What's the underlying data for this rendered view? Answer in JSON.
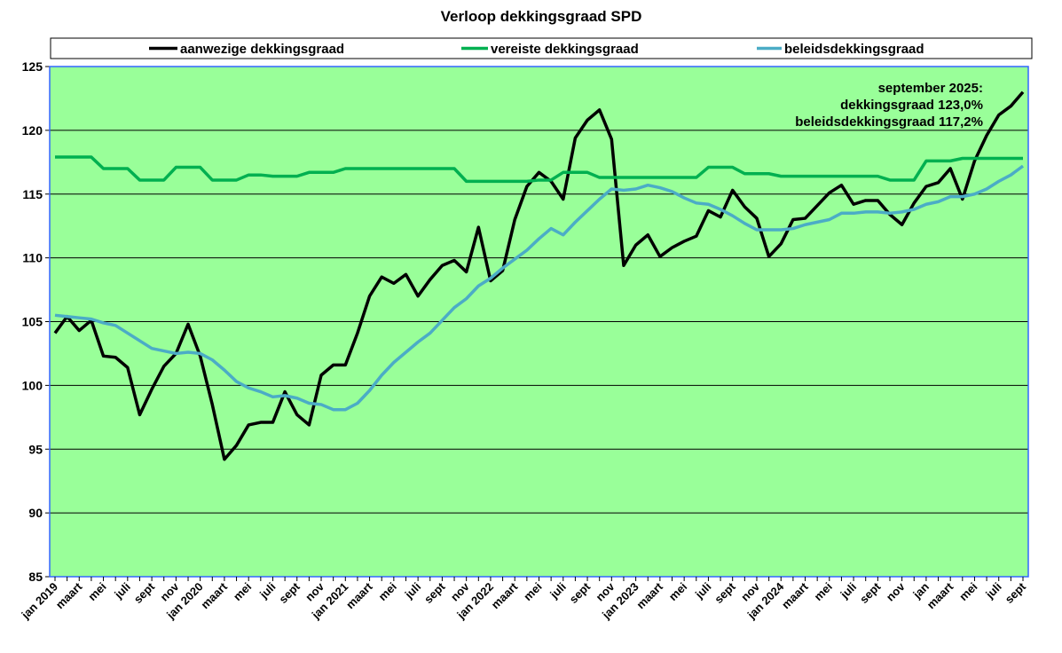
{
  "chart_data": {
    "type": "line",
    "title": "Verloop dekkingsgraad SPD",
    "categories": [
      "jan 2019",
      null,
      "maart",
      null,
      "mei",
      null,
      "juli",
      null,
      "sept",
      null,
      "nov",
      null,
      "jan 2020",
      null,
      "maart",
      null,
      "mei",
      null,
      "juli",
      null,
      "sept",
      null,
      "nov",
      null,
      "jan 2021",
      null,
      "maart",
      null,
      "mei",
      null,
      "juli",
      null,
      "sept",
      null,
      "nov",
      null,
      "jan 2022",
      null,
      "maart",
      null,
      "mei",
      null,
      "juli",
      null,
      "sept",
      null,
      "nov",
      null,
      "jan 2023",
      null,
      "maart",
      null,
      "mei",
      null,
      "juli",
      null,
      "sept",
      null,
      "nov",
      null,
      "jan 2024",
      null,
      "maart",
      null,
      "mei",
      null,
      "juli",
      null,
      "sept",
      null,
      "nov",
      null,
      "jan",
      null,
      "maart",
      null,
      "mei",
      null,
      "juli",
      null,
      "sept"
    ],
    "series": [
      {
        "name": "aanwezige dekkingsgraad",
        "color": "#000000",
        "values": [
          104.1,
          105.4,
          104.3,
          105.1,
          102.3,
          102.2,
          101.4,
          97.7,
          99.7,
          101.5,
          102.5,
          104.8,
          102.3,
          98.5,
          94.2,
          95.3,
          96.9,
          97.1,
          97.1,
          99.5,
          97.7,
          96.9,
          100.8,
          101.6,
          101.6,
          104.1,
          107.0,
          108.5,
          108.0,
          108.7,
          107.0,
          108.3,
          109.4,
          109.8,
          108.9,
          112.4,
          108.2,
          109.0,
          113.0,
          115.6,
          116.7,
          116.0,
          114.6,
          119.4,
          120.8,
          121.6,
          119.3,
          109.4,
          111.0,
          111.8,
          110.1,
          110.8,
          111.3,
          111.7,
          113.7,
          113.2,
          115.3,
          114.0,
          113.1,
          110.1,
          111.1,
          113.0,
          113.1,
          114.1,
          115.1,
          115.7,
          114.2,
          114.5,
          114.5,
          113.4,
          112.6,
          114.3,
          115.6,
          115.9,
          117.0,
          114.6,
          117.6,
          119.6,
          121.2,
          121.9,
          123.0
        ]
      },
      {
        "name": "vereiste dekkingsgraad",
        "color": "#00b050",
        "values": [
          117.9,
          117.9,
          117.9,
          117.9,
          117.0,
          117.0,
          117.0,
          116.1,
          116.1,
          116.1,
          117.1,
          117.1,
          117.1,
          116.1,
          116.1,
          116.1,
          116.5,
          116.5,
          116.4,
          116.4,
          116.4,
          116.7,
          116.7,
          116.7,
          117.0,
          117.0,
          117.0,
          117.0,
          117.0,
          117.0,
          117.0,
          117.0,
          117.0,
          117.0,
          116.0,
          116.0,
          116.0,
          116.0,
          116.0,
          116.0,
          116.1,
          116.1,
          116.7,
          116.7,
          116.7,
          116.3,
          116.3,
          116.3,
          116.3,
          116.3,
          116.3,
          116.3,
          116.3,
          116.3,
          117.1,
          117.1,
          117.1,
          116.6,
          116.6,
          116.6,
          116.4,
          116.4,
          116.4,
          116.4,
          116.4,
          116.4,
          116.4,
          116.4,
          116.4,
          116.1,
          116.1,
          116.1,
          117.6,
          117.6,
          117.6,
          117.8,
          117.8,
          117.8,
          117.8,
          117.8,
          117.8
        ]
      },
      {
        "name": "beleidsdekkingsgraad",
        "color": "#4bacc6",
        "values": [
          105.5,
          105.4,
          105.3,
          105.2,
          104.9,
          104.7,
          104.1,
          103.5,
          102.9,
          102.7,
          102.5,
          102.6,
          102.5,
          102.0,
          101.2,
          100.3,
          99.8,
          99.5,
          99.1,
          99.2,
          99.0,
          98.6,
          98.5,
          98.1,
          98.1,
          98.6,
          99.6,
          100.8,
          101.8,
          102.6,
          103.4,
          104.1,
          105.1,
          106.1,
          106.8,
          107.8,
          108.4,
          109.2,
          109.9,
          110.6,
          111.5,
          112.3,
          111.8,
          112.8,
          113.7,
          114.6,
          115.4,
          115.3,
          115.4,
          115.7,
          115.5,
          115.2,
          114.7,
          114.3,
          114.2,
          113.8,
          113.3,
          112.7,
          112.2,
          112.2,
          112.2,
          112.3,
          112.6,
          112.8,
          113.0,
          113.5,
          113.5,
          113.6,
          113.6,
          113.5,
          113.6,
          113.8,
          114.2,
          114.4,
          114.8,
          114.8,
          115.0,
          115.4,
          116.0,
          116.5,
          117.2
        ]
      }
    ],
    "ylim": [
      85,
      125
    ],
    "yticks": [
      85,
      90,
      95,
      100,
      105,
      110,
      115,
      120,
      125
    ],
    "grid": true,
    "legend": "top",
    "plot_background": "#99ff99",
    "annotation": [
      "september 2025:",
      "dekkingsgraad 123,0%",
      "beleidsdekkingsgraad 117,2%"
    ]
  }
}
